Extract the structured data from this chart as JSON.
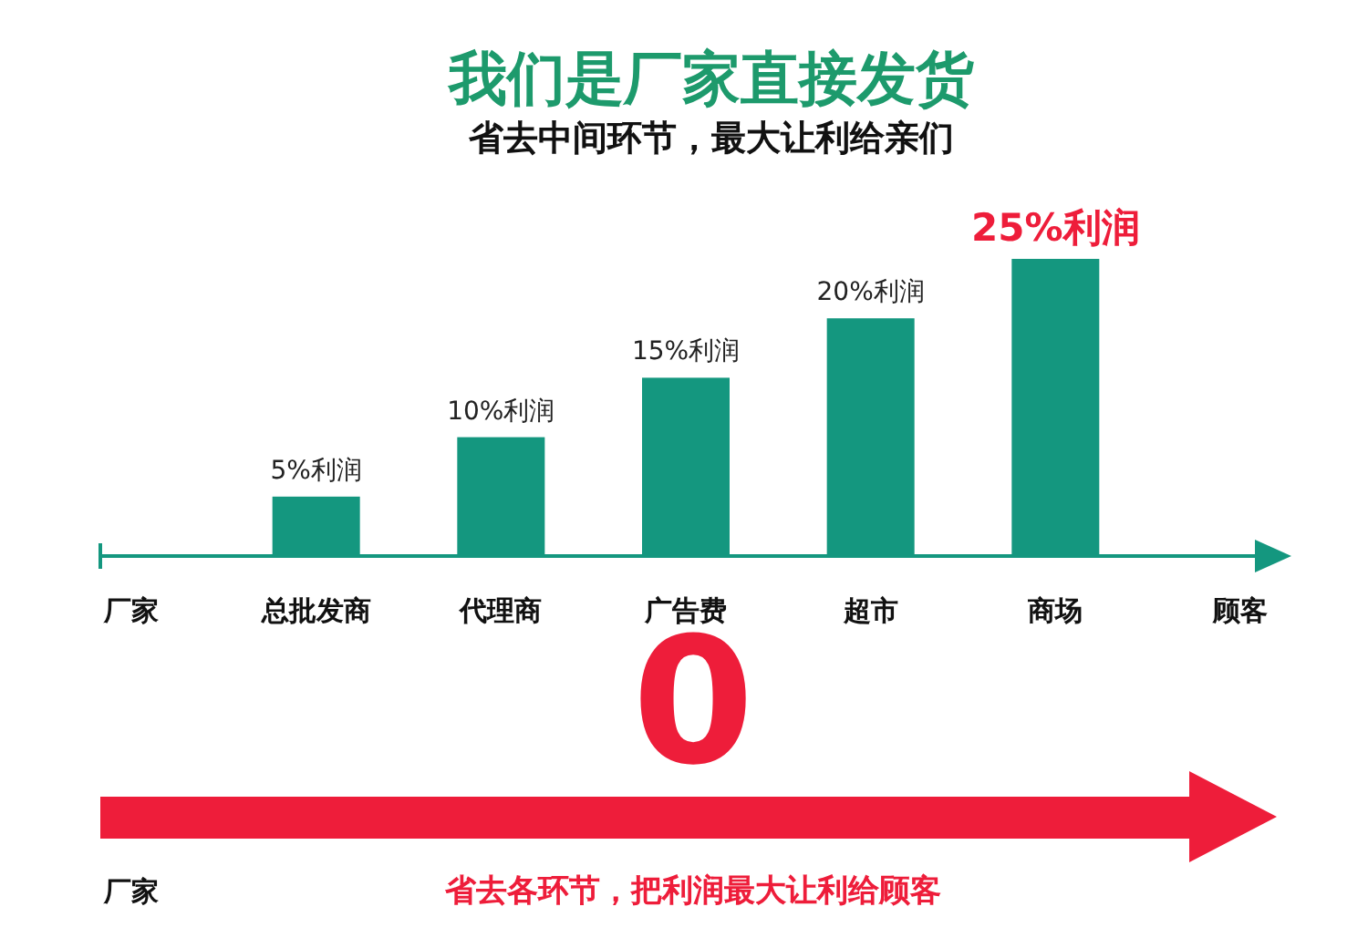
{
  "chart_data": {
    "type": "bar",
    "title": "我们是厂家直接发货",
    "subtitle": "省去中间环节，最大让利给亲们",
    "categories": [
      "厂家",
      "总批发商",
      "代理商",
      "广告费",
      "超市",
      "商场",
      "顾客"
    ],
    "values": [
      null,
      5,
      10,
      15,
      20,
      25,
      null
    ],
    "value_labels": [
      null,
      "5%利润",
      "10%利润",
      "15%利润",
      "20%利润",
      "25%利润",
      null
    ],
    "color": "#14977f",
    "annotations": [
      "0",
      "厂家",
      "省去各环节，把利润最大让利给顾客"
    ]
  }
}
